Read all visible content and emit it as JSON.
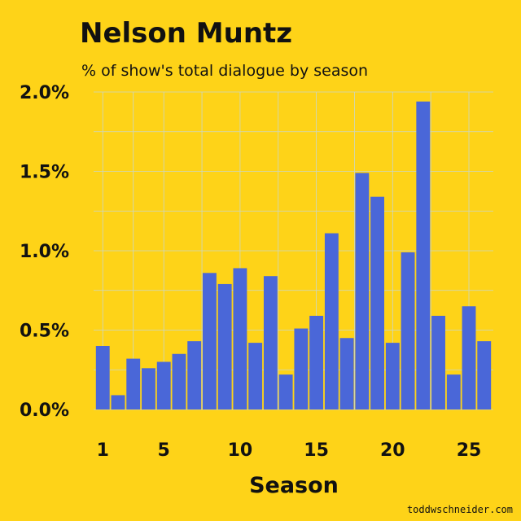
{
  "title": "Nelson Muntz",
  "subtitle": "% of show's total dialogue by season",
  "credit": "toddwschneider.com",
  "colors": {
    "background": "#FED318",
    "bar": "#4A67D8",
    "text": "#111111",
    "grid": "#C9D6C9"
  },
  "chart_data": {
    "type": "bar",
    "title": "Nelson Muntz",
    "subtitle": "% of show's total dialogue by season",
    "xlabel": "Season",
    "ylabel": "",
    "x_ticks": [
      "1",
      "5",
      "10",
      "15",
      "20",
      "25"
    ],
    "y_ticks": [
      "0.0%",
      "0.5%",
      "1.0%",
      "1.5%",
      "2.0%"
    ],
    "ylim": [
      0,
      2.0
    ],
    "grid": true,
    "categories": [
      1,
      2,
      3,
      4,
      5,
      6,
      7,
      8,
      9,
      10,
      11,
      12,
      13,
      14,
      15,
      16,
      17,
      18,
      19,
      20,
      21,
      22,
      23,
      24,
      25,
      26
    ],
    "values": [
      0.4,
      0.09,
      0.32,
      0.26,
      0.3,
      0.35,
      0.43,
      0.86,
      0.79,
      0.89,
      0.42,
      0.84,
      0.22,
      0.51,
      0.59,
      1.11,
      0.45,
      1.49,
      1.34,
      0.42,
      0.99,
      1.94,
      0.59,
      0.22,
      0.65,
      0.43
    ]
  }
}
